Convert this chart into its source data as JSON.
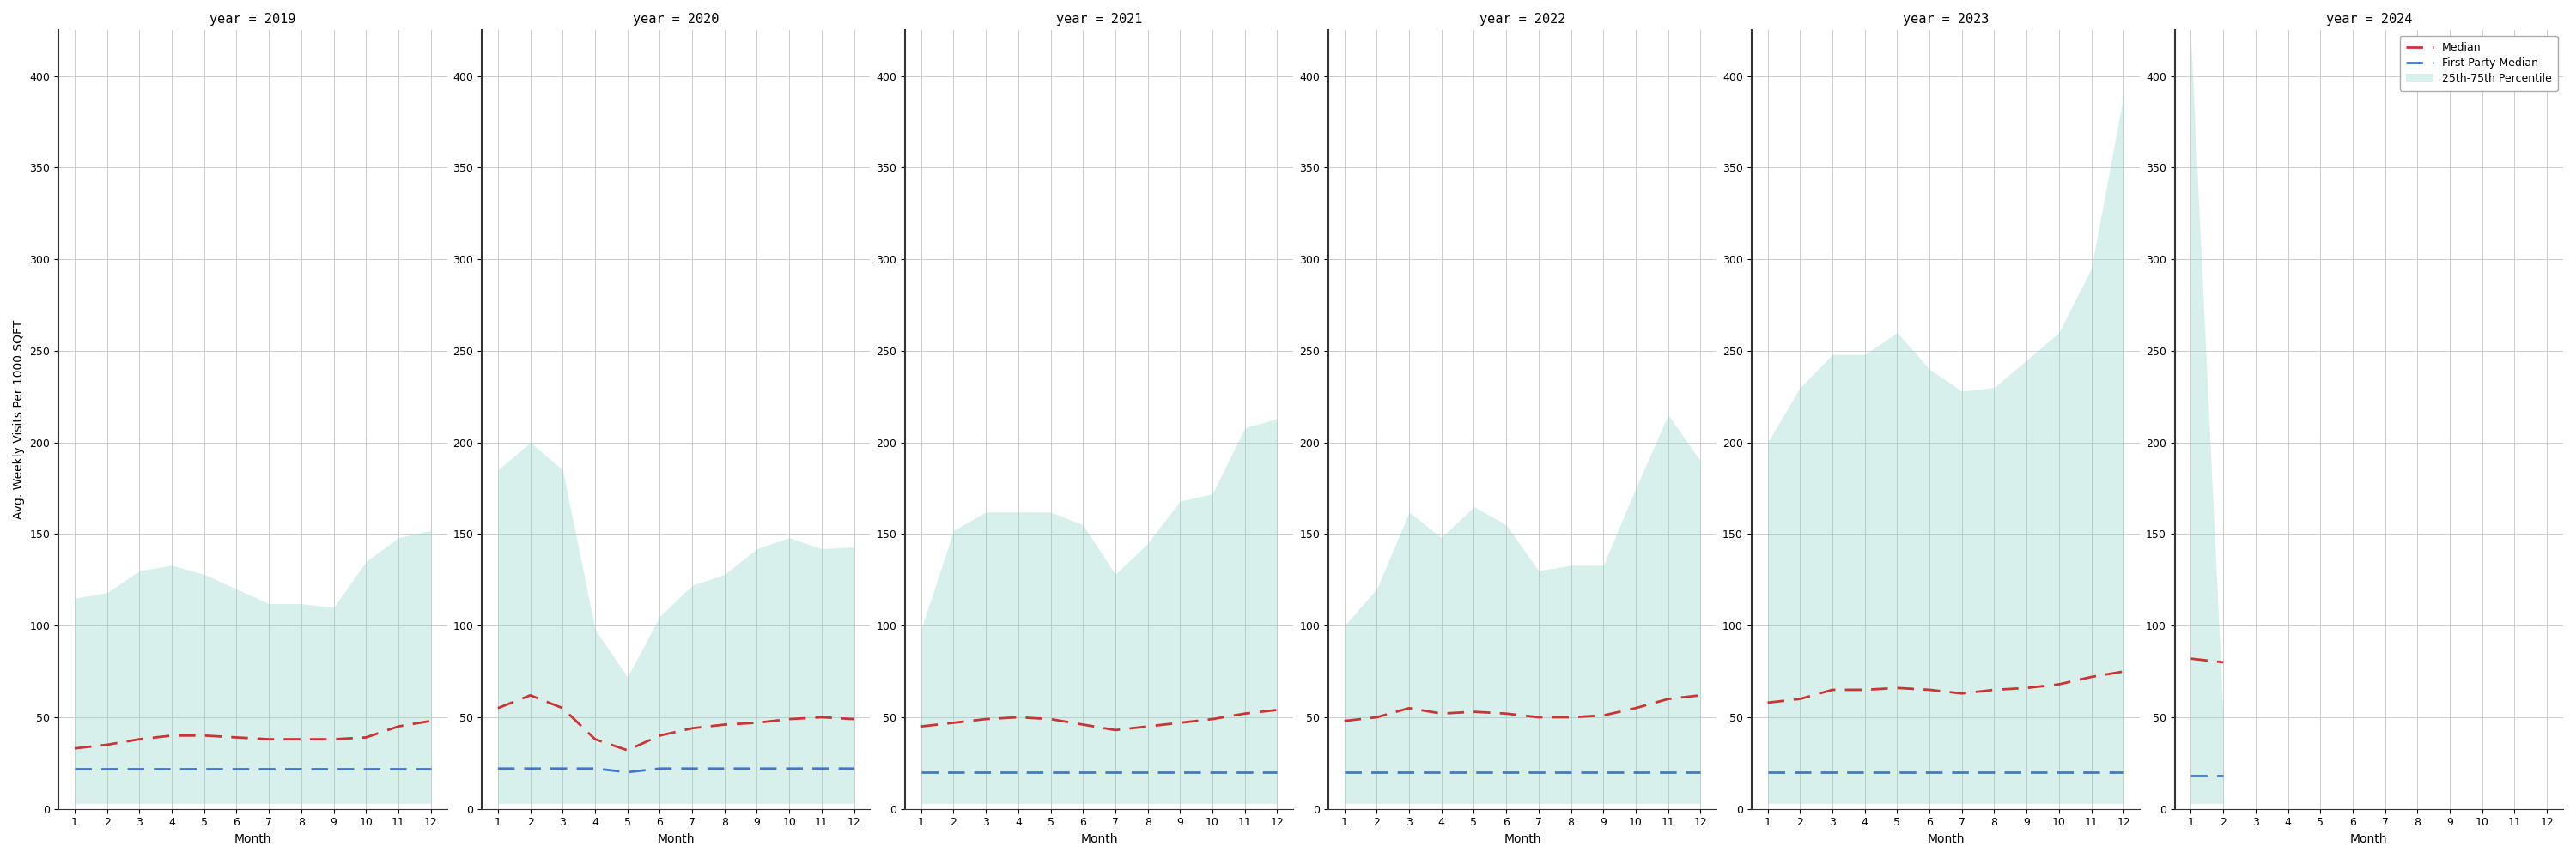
{
  "years": [
    2019,
    2020,
    2021,
    2022,
    2023,
    2024
  ],
  "ylabel": "Avg. Weekly Visits Per 1000 SQFT",
  "xlabel": "Month",
  "ylim": [
    0,
    425
  ],
  "yticks": [
    0,
    50,
    100,
    150,
    200,
    250,
    300,
    350,
    400
  ],
  "median_color": "#cc3333",
  "fp_median_color": "#4477cc",
  "band_color": "#90d4c8",
  "band_alpha": 0.35,
  "background_color": "#ffffff",
  "grid_color": "#cccccc",
  "median": {
    "2019": [
      33,
      35,
      38,
      40,
      40,
      39,
      38,
      38,
      38,
      39,
      45,
      48
    ],
    "2020": [
      55,
      62,
      55,
      38,
      32,
      40,
      44,
      46,
      47,
      49,
      50,
      49
    ],
    "2021": [
      45,
      47,
      49,
      50,
      49,
      46,
      43,
      45,
      47,
      49,
      52,
      54
    ],
    "2022": [
      48,
      50,
      55,
      52,
      53,
      52,
      50,
      50,
      51,
      55,
      60,
      62
    ],
    "2023": [
      58,
      60,
      65,
      65,
      66,
      65,
      63,
      65,
      66,
      68,
      72,
      75
    ],
    "2024": [
      82,
      80
    ]
  },
  "fp_median": {
    "2019": [
      22,
      22,
      22,
      22,
      22,
      22,
      22,
      22,
      22,
      22,
      22,
      22
    ],
    "2020": [
      22,
      22,
      22,
      22,
      20,
      22,
      22,
      22,
      22,
      22,
      22,
      22
    ],
    "2021": [
      20,
      20,
      20,
      20,
      20,
      20,
      20,
      20,
      20,
      20,
      20,
      20
    ],
    "2022": [
      20,
      20,
      20,
      20,
      20,
      20,
      20,
      20,
      20,
      20,
      20,
      20
    ],
    "2023": [
      20,
      20,
      20,
      20,
      20,
      20,
      20,
      20,
      20,
      20,
      20,
      20
    ],
    "2024": [
      18,
      18
    ]
  },
  "p25": {
    "2019": [
      3,
      3,
      3,
      3,
      3,
      3,
      3,
      3,
      3,
      3,
      3,
      3
    ],
    "2020": [
      3,
      3,
      3,
      3,
      3,
      3,
      3,
      3,
      3,
      3,
      3,
      3
    ],
    "2021": [
      3,
      3,
      3,
      3,
      3,
      3,
      3,
      3,
      3,
      3,
      3,
      3
    ],
    "2022": [
      3,
      3,
      3,
      3,
      3,
      3,
      3,
      3,
      3,
      3,
      3,
      3
    ],
    "2023": [
      3,
      3,
      3,
      3,
      3,
      3,
      3,
      3,
      3,
      3,
      3,
      3
    ],
    "2024": [
      3,
      3
    ]
  },
  "p75": {
    "2019": [
      115,
      118,
      130,
      133,
      128,
      120,
      112,
      112,
      110,
      135,
      148,
      152
    ],
    "2020": [
      185,
      200,
      185,
      98,
      72,
      105,
      122,
      128,
      142,
      148,
      142,
      143
    ],
    "2021": [
      98,
      152,
      162,
      162,
      162,
      155,
      128,
      145,
      168,
      172,
      208,
      213
    ],
    "2022": [
      100,
      120,
      162,
      148,
      165,
      155,
      130,
      133,
      133,
      175,
      215,
      190
    ],
    "2023": [
      200,
      230,
      248,
      248,
      260,
      240,
      228,
      230,
      245,
      260,
      295,
      390
    ],
    "2024": [
      420,
      50
    ]
  },
  "legend_labels": [
    "Median",
    "First Party Median",
    "25th-75th Percentile"
  ],
  "title_fontsize": 11,
  "tick_fontsize": 9,
  "axis_label_fontsize": 10
}
